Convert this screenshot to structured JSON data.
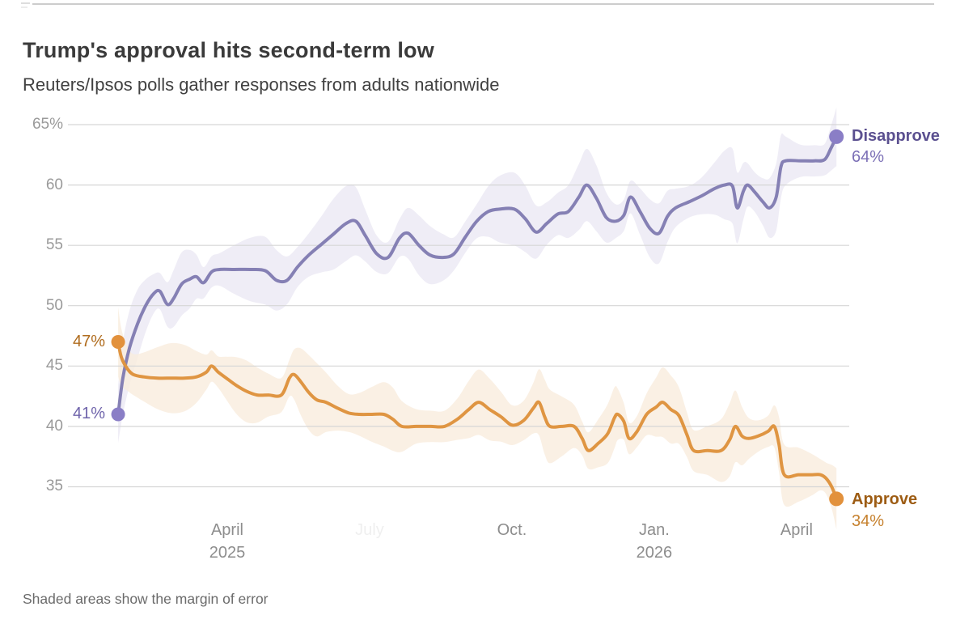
{
  "page": {
    "title": "Trump's approval hits second-term low",
    "subtitle": "Reuters/Ipsos polls gather responses from adults nationwide",
    "footnote": "Shaded areas show the margin of error"
  },
  "chart_data": {
    "type": "line",
    "title": "Trump's approval hits second-term low",
    "subtitle": "Reuters/Ipsos polls gather responses from adults nationwide",
    "note": "Shaded areas show the margin of error",
    "x_unit": "months since Jan 1, 2025",
    "x_range_months": [
      0.7,
      15.84
    ],
    "ylim": [
      35,
      65
    ],
    "grid": true,
    "legend_position": "end-of-line",
    "y_ticks": [
      {
        "label": "65%",
        "value": 65
      },
      {
        "label": "60",
        "value": 60
      },
      {
        "label": "55",
        "value": 55
      },
      {
        "label": "50",
        "value": 50
      },
      {
        "label": "45",
        "value": 45
      },
      {
        "label": "40",
        "value": 40
      },
      {
        "label": "35",
        "value": 35
      }
    ],
    "x_ticks": [
      {
        "label": "April",
        "sublabel": "2025",
        "t": 3.0,
        "ghost": false
      },
      {
        "label": "July",
        "sublabel": "",
        "t": 6.0,
        "ghost": true
      },
      {
        "label": "Oct.",
        "sublabel": "",
        "t": 9.0,
        "ghost": false
      },
      {
        "label": "Jan.",
        "sublabel": "2026",
        "t": 12.0,
        "ghost": false
      },
      {
        "label": "April",
        "sublabel": "",
        "t": 15.0,
        "ghost": false
      }
    ],
    "series": [
      {
        "name": "Disapprove",
        "start_value": 41,
        "start_value_label": "41%",
        "end_value": 64,
        "end_value_label": "64%",
        "moe": 2.1,
        "color": "#8580b4",
        "dot_color": "#8a7ec6",
        "band_color": "#ebe8f4",
        "name_color": "#5b5090",
        "value_color": "#7b6fb6",
        "points": [
          [
            0.7,
            41
          ],
          [
            0.8,
            44
          ],
          [
            0.94,
            46.5
          ],
          [
            1.11,
            48.5
          ],
          [
            1.28,
            50
          ],
          [
            1.45,
            51
          ],
          [
            1.58,
            51.2
          ],
          [
            1.74,
            50.1
          ],
          [
            1.87,
            50.6
          ],
          [
            2.04,
            51.8
          ],
          [
            2.21,
            52.2
          ],
          [
            2.35,
            52.4
          ],
          [
            2.5,
            51.9
          ],
          [
            2.67,
            52.8
          ],
          [
            2.84,
            53
          ],
          [
            3.15,
            53
          ],
          [
            3.49,
            53
          ],
          [
            3.8,
            52.9
          ],
          [
            4.04,
            52.1
          ],
          [
            4.26,
            52.1
          ],
          [
            4.48,
            53.2
          ],
          [
            4.72,
            54.2
          ],
          [
            4.99,
            55.1
          ],
          [
            5.23,
            55.9
          ],
          [
            5.5,
            56.8
          ],
          [
            5.71,
            57
          ],
          [
            5.91,
            55.8
          ],
          [
            6.15,
            54.3
          ],
          [
            6.39,
            54
          ],
          [
            6.63,
            55.6
          ],
          [
            6.81,
            56
          ],
          [
            7.04,
            55
          ],
          [
            7.27,
            54.2
          ],
          [
            7.55,
            54
          ],
          [
            7.78,
            54.3
          ],
          [
            8.02,
            55.7
          ],
          [
            8.26,
            57
          ],
          [
            8.5,
            57.8
          ],
          [
            8.74,
            58
          ],
          [
            9.05,
            58
          ],
          [
            9.28,
            57.2
          ],
          [
            9.51,
            56.1
          ],
          [
            9.73,
            56.8
          ],
          [
            9.97,
            57.6
          ],
          [
            10.19,
            57.8
          ],
          [
            10.41,
            59
          ],
          [
            10.58,
            60
          ],
          [
            10.78,
            58.9
          ],
          [
            10.99,
            57.3
          ],
          [
            11.19,
            57
          ],
          [
            11.36,
            57.5
          ],
          [
            11.5,
            59
          ],
          [
            11.7,
            57.8
          ],
          [
            11.91,
            56.4
          ],
          [
            12.1,
            56
          ],
          [
            12.28,
            57.4
          ],
          [
            12.45,
            58.1
          ],
          [
            12.73,
            58.6
          ],
          [
            13.0,
            59.1
          ],
          [
            13.27,
            59.7
          ],
          [
            13.48,
            60
          ],
          [
            13.65,
            59.9
          ],
          [
            13.75,
            58.1
          ],
          [
            13.88,
            59.5
          ],
          [
            13.97,
            60
          ],
          [
            14.12,
            59.4
          ],
          [
            14.29,
            58.6
          ],
          [
            14.43,
            58.1
          ],
          [
            14.57,
            59
          ],
          [
            14.67,
            61.5
          ],
          [
            14.77,
            62
          ],
          [
            15.08,
            62
          ],
          [
            15.38,
            62
          ],
          [
            15.59,
            62.1
          ],
          [
            15.72,
            63
          ],
          [
            15.84,
            64
          ]
        ]
      },
      {
        "name": "Approve",
        "start_value": 47,
        "start_value_label": "47%",
        "end_value": 34,
        "end_value_label": "34%",
        "moe": 2.1,
        "color": "#df9542",
        "dot_color": "#e2913c",
        "band_color": "#f9ecdd",
        "name_color": "#9d5c13",
        "value_color": "#c6812e",
        "points": [
          [
            0.7,
            47
          ],
          [
            0.77,
            45.7
          ],
          [
            0.89,
            44.8
          ],
          [
            1.02,
            44.3
          ],
          [
            1.24,
            44.1
          ],
          [
            1.53,
            44
          ],
          [
            1.82,
            44
          ],
          [
            2.1,
            44
          ],
          [
            2.35,
            44.1
          ],
          [
            2.56,
            44.5
          ],
          [
            2.67,
            45
          ],
          [
            2.81,
            44.5
          ],
          [
            2.98,
            44
          ],
          [
            3.19,
            43.4
          ],
          [
            3.41,
            42.9
          ],
          [
            3.63,
            42.6
          ],
          [
            3.87,
            42.6
          ],
          [
            4.14,
            42.6
          ],
          [
            4.31,
            44
          ],
          [
            4.41,
            44.3
          ],
          [
            4.55,
            43.7
          ],
          [
            4.72,
            42.8
          ],
          [
            4.89,
            42.2
          ],
          [
            5.08,
            42
          ],
          [
            5.33,
            41.5
          ],
          [
            5.57,
            41.1
          ],
          [
            5.79,
            41
          ],
          [
            6.05,
            41
          ],
          [
            6.3,
            41
          ],
          [
            6.49,
            40.6
          ],
          [
            6.68,
            40
          ],
          [
            6.98,
            40
          ],
          [
            7.29,
            40
          ],
          [
            7.58,
            40
          ],
          [
            7.85,
            40.6
          ],
          [
            8.09,
            41.4
          ],
          [
            8.3,
            42
          ],
          [
            8.53,
            41.4
          ],
          [
            8.77,
            40.8
          ],
          [
            9.01,
            40.1
          ],
          [
            9.25,
            40.5
          ],
          [
            9.45,
            41.5
          ],
          [
            9.57,
            42
          ],
          [
            9.69,
            40.8
          ],
          [
            9.8,
            40
          ],
          [
            10.05,
            40
          ],
          [
            10.31,
            40
          ],
          [
            10.48,
            39
          ],
          [
            10.61,
            38
          ],
          [
            10.82,
            38.6
          ],
          [
            11.02,
            39.4
          ],
          [
            11.16,
            40.7
          ],
          [
            11.23,
            41
          ],
          [
            11.36,
            40.4
          ],
          [
            11.47,
            39
          ],
          [
            11.64,
            39.6
          ],
          [
            11.84,
            41
          ],
          [
            12.04,
            41.6
          ],
          [
            12.18,
            42
          ],
          [
            12.35,
            41.4
          ],
          [
            12.52,
            40.9
          ],
          [
            12.69,
            39.3
          ],
          [
            12.83,
            38
          ],
          [
            13.12,
            38
          ],
          [
            13.41,
            38
          ],
          [
            13.59,
            38.9
          ],
          [
            13.71,
            40
          ],
          [
            13.85,
            39.2
          ],
          [
            13.99,
            39
          ],
          [
            14.19,
            39.2
          ],
          [
            14.4,
            39.6
          ],
          [
            14.53,
            40
          ],
          [
            14.63,
            38.5
          ],
          [
            14.74,
            36
          ],
          [
            15.04,
            36
          ],
          [
            15.33,
            36
          ],
          [
            15.5,
            36
          ],
          [
            15.62,
            35.7
          ],
          [
            15.74,
            35
          ],
          [
            15.84,
            34
          ]
        ]
      }
    ]
  }
}
